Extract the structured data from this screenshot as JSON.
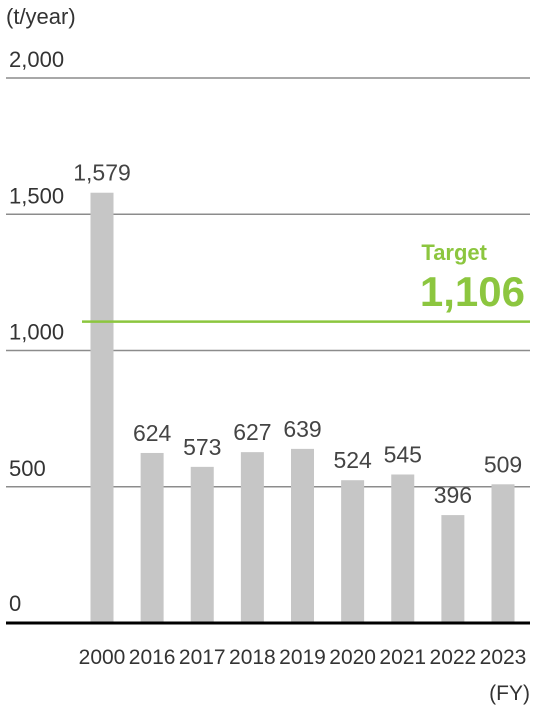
{
  "chart_data": {
    "type": "bar",
    "ylabel": "(t/year)",
    "xlabel": "(FY)",
    "categories": [
      "2000",
      "2016",
      "2017",
      "2018",
      "2019",
      "2020",
      "2021",
      "2022",
      "2023"
    ],
    "values": [
      1579,
      624,
      573,
      627,
      639,
      524,
      545,
      396,
      509
    ],
    "value_labels": [
      "1,579",
      "624",
      "573",
      "627",
      "639",
      "524",
      "545",
      "396",
      "509"
    ],
    "yticks": [
      {
        "value": 0,
        "label": "0"
      },
      {
        "value": 500,
        "label": "500"
      },
      {
        "value": 1000,
        "label": "1,000"
      },
      {
        "value": 1500,
        "label": "1,500"
      },
      {
        "value": 2000,
        "label": "2,000"
      }
    ],
    "ylim": [
      0,
      2000
    ],
    "grid": true,
    "target": {
      "label": "Target",
      "value": 1106,
      "value_label": "1,106"
    },
    "colors": {
      "bar": "#c6c6c6",
      "target": "#8cc63f",
      "grid": "#8c8c8c",
      "baseline": "#000000"
    }
  }
}
